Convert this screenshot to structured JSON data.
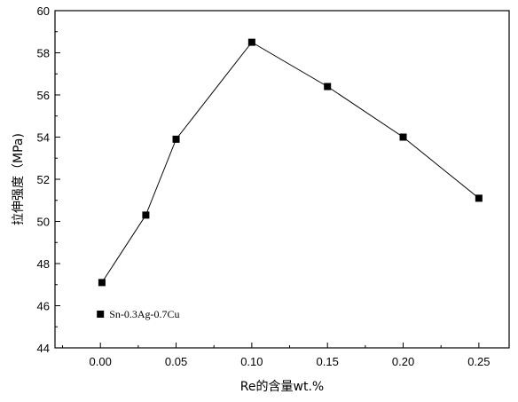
{
  "chart_data": {
    "type": "line",
    "title": "",
    "xlabel": "Re的含量wt.%",
    "ylabel": "拉伸强度（MPa)",
    "xlim": [
      -0.03,
      0.27
    ],
    "ylim": [
      44,
      60
    ],
    "xticks": [
      0.0,
      0.05,
      0.1,
      0.15,
      0.2,
      0.25
    ],
    "xtick_labels": [
      "0.00",
      "0.05",
      "0.10",
      "0.15",
      "0.20",
      "0.25"
    ],
    "yticks": [
      44,
      46,
      48,
      50,
      52,
      54,
      56,
      58,
      60
    ],
    "ytick_labels": [
      "44",
      "46",
      "48",
      "50",
      "52",
      "54",
      "56",
      "58",
      "60"
    ],
    "series": [
      {
        "x": [
          0.001,
          0.03,
          0.05,
          0.1,
          0.15,
          0.2,
          0.25
        ],
        "y": [
          47.1,
          50.3,
          53.9,
          58.5,
          56.4,
          54.0,
          51.1
        ],
        "marker": "square",
        "color": "#000000"
      }
    ],
    "reference_point": {
      "x": 0.0,
      "y": 45.6,
      "label": "Sn-0.3Ag-0.7Cu"
    },
    "grid": false,
    "legend": "none"
  }
}
